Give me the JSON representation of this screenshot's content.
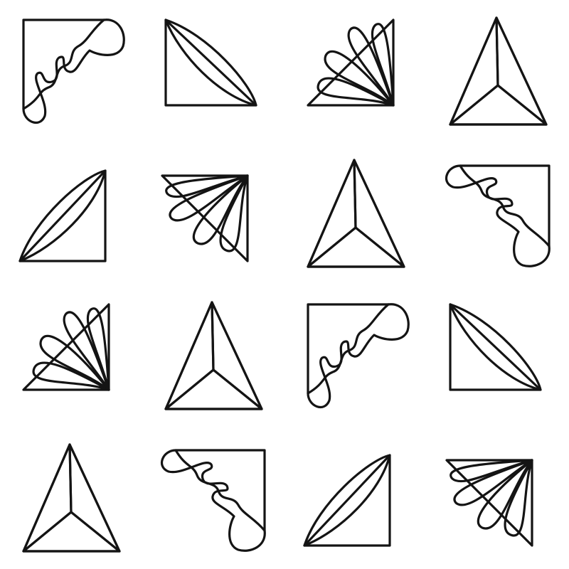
{
  "colors": {
    "blue": "#a9c4f7",
    "pink": "#e1acf7",
    "green": "#b9f5aa",
    "outline": "#141414",
    "background": "#ffffff"
  },
  "grid": {
    "rows": 4,
    "cols": 4,
    "cells": [
      {
        "shape": "wavy-corner",
        "icon": "wavy-corner-tile-icon",
        "rotation": 0
      },
      {
        "shape": "lens-triangle",
        "icon": "lens-triangle-tile-icon",
        "rotation": 0
      },
      {
        "shape": "fan",
        "icon": "fan-tile-icon",
        "rotation": 0
      },
      {
        "shape": "tri-pyramid",
        "icon": "tri-pyramid-tile-icon",
        "rotation": 0
      },
      {
        "shape": "lens-triangle",
        "icon": "lens-triangle-tile-icon",
        "rotation": 270
      },
      {
        "shape": "fan",
        "icon": "fan-tile-icon",
        "rotation": 270
      },
      {
        "shape": "tri-pyramid",
        "icon": "tri-pyramid-tile-icon",
        "rotation": 0
      },
      {
        "shape": "wavy-corner",
        "icon": "wavy-corner-tile-icon",
        "rotation": 90
      },
      {
        "shape": "fan",
        "icon": "fan-tile-icon",
        "rotation": 0
      },
      {
        "shape": "tri-pyramid",
        "icon": "tri-pyramid-tile-icon",
        "rotation": 0
      },
      {
        "shape": "wavy-corner",
        "icon": "wavy-corner-tile-icon",
        "rotation": 0
      },
      {
        "shape": "lens-triangle",
        "icon": "lens-triangle-tile-icon",
        "rotation": 0
      },
      {
        "shape": "tri-pyramid",
        "icon": "tri-pyramid-tile-icon",
        "rotation": 0
      },
      {
        "shape": "wavy-corner",
        "icon": "wavy-corner-tile-icon",
        "rotation": 90
      },
      {
        "shape": "lens-triangle",
        "icon": "lens-triangle-tile-icon",
        "rotation": 270
      },
      {
        "shape": "fan",
        "icon": "fan-tile-icon",
        "rotation": 270
      }
    ]
  }
}
